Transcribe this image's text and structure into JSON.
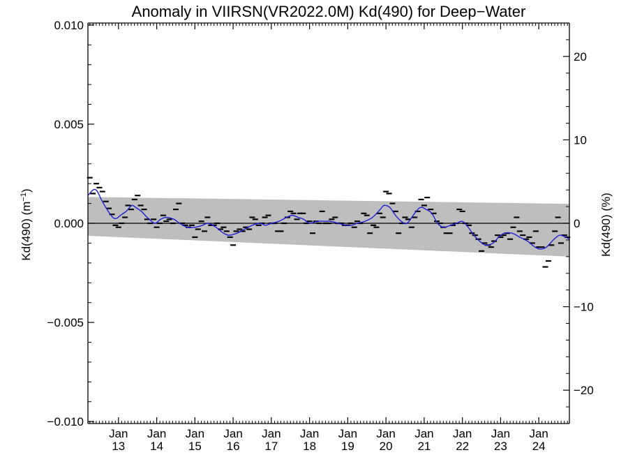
{
  "chart_data": {
    "type": "line",
    "title": "Anomaly in VIIRSN(VR2022.0M) Kd(490) for Deep−Water",
    "ylabel_left": "Kd(490) (m",
    "ylabel_left_sup": "−1",
    "ylabel_left_end": ")",
    "ylabel_right": "Kd(490) (%)",
    "xlim": [
      2012.2,
      2024.8
    ],
    "ylim_left": [
      -0.0101,
      0.0101
    ],
    "ylim_right": [
      -24,
      24
    ],
    "grid": false,
    "x_ticks": [
      {
        "x": 2013,
        "line1": "Jan",
        "line2": "13"
      },
      {
        "x": 2014,
        "line1": "Jan",
        "line2": "14"
      },
      {
        "x": 2015,
        "line1": "Jan",
        "line2": "15"
      },
      {
        "x": 2016,
        "line1": "Jan",
        "line2": "16"
      },
      {
        "x": 2017,
        "line1": "Jan",
        "line2": "17"
      },
      {
        "x": 2018,
        "line1": "Jan",
        "line2": "18"
      },
      {
        "x": 2019,
        "line1": "Jan",
        "line2": "19"
      },
      {
        "x": 2020,
        "line1": "Jan",
        "line2": "20"
      },
      {
        "x": 2021,
        "line1": "Jan",
        "line2": "21"
      },
      {
        "x": 2022,
        "line1": "Jan",
        "line2": "22"
      },
      {
        "x": 2023,
        "line1": "Jan",
        "line2": "23"
      },
      {
        "x": 2024,
        "line1": "Jan",
        "line2": "24"
      }
    ],
    "y_ticks_left": [
      {
        "v": 0.01,
        "label": "0.010"
      },
      {
        "v": 0.005,
        "label": "0.005"
      },
      {
        "v": 0.0,
        "label": "0.000"
      },
      {
        "v": -0.005,
        "label": "−0.005"
      },
      {
        "v": -0.01,
        "label": "−0.010"
      }
    ],
    "y_ticks_right": [
      {
        "v": 20,
        "label": "20"
      },
      {
        "v": 10,
        "label": "10"
      },
      {
        "v": 0,
        "label": "0"
      },
      {
        "v": -10,
        "label": "−10"
      },
      {
        "v": -20,
        "label": "−20"
      }
    ],
    "band": {
      "upper": [
        [
          2012.2,
          0.00133
        ],
        [
          2024.8,
          0.00098
        ]
      ],
      "lower": [
        [
          2012.2,
          -0.00063
        ],
        [
          2024.8,
          -0.00168
        ]
      ]
    },
    "monthly_anomaly": [
      [
        2012.25,
        0.0023
      ],
      [
        2012.33,
        0.0015
      ],
      [
        2012.42,
        0.002
      ],
      [
        2012.5,
        0.0018
      ],
      [
        2012.58,
        0.0016
      ],
      [
        2012.67,
        0.0011
      ],
      [
        2012.75,
        0.00075
      ],
      [
        2012.83,
        0.00045
      ],
      [
        2012.92,
        -0.0001
      ],
      [
        2013.0,
        -0.0002
      ],
      [
        2013.08,
        0.0
      ],
      [
        2013.17,
        0.0003
      ],
      [
        2013.25,
        0.0009
      ],
      [
        2013.33,
        0.0007
      ],
      [
        2013.42,
        0.0012
      ],
      [
        2013.5,
        0.0014
      ],
      [
        2013.58,
        0.0009
      ],
      [
        2013.67,
        0.0007
      ],
      [
        2013.75,
        0.0002
      ],
      [
        2013.83,
        0.0
      ],
      [
        2013.92,
        0.0002
      ],
      [
        2014.0,
        -0.0002
      ],
      [
        2014.08,
        0.0
      ],
      [
        2014.17,
        0.0004
      ],
      [
        2014.25,
        0.0001
      ],
      [
        2014.33,
        0.0002
      ],
      [
        2014.42,
        0.0
      ],
      [
        2014.5,
        0.0007
      ],
      [
        2014.58,
        0.001
      ],
      [
        2014.67,
        0.0
      ],
      [
        2014.75,
        -0.0001
      ],
      [
        2014.83,
        -0.0002
      ],
      [
        2014.92,
        -0.0001
      ],
      [
        2015.0,
        -0.0007
      ],
      [
        2015.08,
        -0.0003
      ],
      [
        2015.17,
        0.0001
      ],
      [
        2015.25,
        -0.0004
      ],
      [
        2015.33,
        0.0003
      ],
      [
        2015.42,
        -0.0001
      ],
      [
        2015.5,
        -0.0001
      ],
      [
        2015.58,
        0.0
      ],
      [
        2015.67,
        -0.0003
      ],
      [
        2015.75,
        -0.0002
      ],
      [
        2015.83,
        -0.0004
      ],
      [
        2015.92,
        -0.0007
      ],
      [
        2016.0,
        -0.0011
      ],
      [
        2016.08,
        -0.0004
      ],
      [
        2016.17,
        -0.0003
      ],
      [
        2016.25,
        -0.0004
      ],
      [
        2016.33,
        -0.0002
      ],
      [
        2016.42,
        -0.0003
      ],
      [
        2016.5,
        0.0003
      ],
      [
        2016.58,
        0.0002
      ],
      [
        2016.67,
        -0.0001
      ],
      [
        2016.75,
        0.0
      ],
      [
        2016.83,
        0.0003
      ],
      [
        2016.92,
        0.0004
      ],
      [
        2017.0,
        0.0
      ],
      [
        2017.08,
        0.0
      ],
      [
        2017.17,
        -0.0004
      ],
      [
        2017.25,
        -0.0004
      ],
      [
        2017.33,
        0.0
      ],
      [
        2017.42,
        0.0003
      ],
      [
        2017.5,
        0.0006
      ],
      [
        2017.58,
        0.0005
      ],
      [
        2017.67,
        0.0002
      ],
      [
        2017.75,
        0.0005
      ],
      [
        2017.83,
        0.0005
      ],
      [
        2017.92,
        0.0
      ],
      [
        2018.0,
        0.0001
      ],
      [
        2018.08,
        -0.0005
      ],
      [
        2018.17,
        0.0001
      ],
      [
        2018.25,
        0.0
      ],
      [
        2018.33,
        0.0006
      ],
      [
        2018.42,
        0.0
      ],
      [
        2018.5,
        0.0
      ],
      [
        2018.58,
        0.0002
      ],
      [
        2018.67,
        0.0003
      ],
      [
        2018.75,
        0.0
      ],
      [
        2018.83,
        0.0
      ],
      [
        2018.92,
        -0.0001
      ],
      [
        2019.0,
        -0.0001
      ],
      [
        2019.08,
        0.0
      ],
      [
        2019.17,
        -0.0002
      ],
      [
        2019.25,
        0.0001
      ],
      [
        2019.33,
        0.0
      ],
      [
        2019.42,
        0.0005
      ],
      [
        2019.5,
        0.0004
      ],
      [
        2019.58,
        -0.0005
      ],
      [
        2019.67,
        -0.0001
      ],
      [
        2019.75,
        -0.0002
      ],
      [
        2019.83,
        0.0005
      ],
      [
        2019.92,
        0.0003
      ],
      [
        2020.0,
        0.0016
      ],
      [
        2020.08,
        0.0015
      ],
      [
        2020.17,
        0.001
      ],
      [
        2020.25,
        0.0006
      ],
      [
        2020.33,
        -0.0005
      ],
      [
        2020.42,
        0.0
      ],
      [
        2020.5,
        0.0003
      ],
      [
        2020.58,
        0.0002
      ],
      [
        2020.67,
        -0.0002
      ],
      [
        2020.75,
        0.0003
      ],
      [
        2020.83,
        0.0006
      ],
      [
        2020.92,
        0.0012
      ],
      [
        2021.0,
        0.0009
      ],
      [
        2021.08,
        0.0013
      ],
      [
        2021.17,
        0.0007
      ],
      [
        2021.25,
        0.0005
      ],
      [
        2021.33,
        0.0001
      ],
      [
        2021.42,
        0.0
      ],
      [
        2021.5,
        -0.0002
      ],
      [
        2021.58,
        -0.0005
      ],
      [
        2021.67,
        -0.0005
      ],
      [
        2021.75,
        -0.0001
      ],
      [
        2021.83,
        0.0
      ],
      [
        2021.92,
        0.0007
      ],
      [
        2022.0,
        0.0006
      ],
      [
        2022.08,
        0.0
      ],
      [
        2022.17,
        -0.0001
      ],
      [
        2022.25,
        -0.0005
      ],
      [
        2022.33,
        -0.0006
      ],
      [
        2022.42,
        -0.0008
      ],
      [
        2022.5,
        -0.0014
      ],
      [
        2022.58,
        -0.001
      ],
      [
        2022.67,
        -0.0011
      ],
      [
        2022.75,
        -0.0012
      ],
      [
        2022.83,
        -0.0009
      ],
      [
        2022.92,
        -0.0006
      ],
      [
        2023.0,
        -0.0007
      ],
      [
        2023.08,
        -0.0006
      ],
      [
        2023.17,
        -0.0005
      ],
      [
        2023.25,
        -0.0008
      ],
      [
        2023.33,
        -0.0002
      ],
      [
        2023.42,
        0.0003
      ],
      [
        2023.5,
        -0.0004
      ],
      [
        2023.58,
        -0.0006
      ],
      [
        2023.67,
        -0.0008
      ],
      [
        2023.75,
        -0.0007
      ],
      [
        2023.83,
        -0.001
      ],
      [
        2023.92,
        -0.0004
      ],
      [
        2024.0,
        -0.0012
      ],
      [
        2024.08,
        -0.0012
      ],
      [
        2024.17,
        -0.0022
      ],
      [
        2024.25,
        -0.0019
      ],
      [
        2024.33,
        -0.0011
      ],
      [
        2024.42,
        -0.0004
      ],
      [
        2024.5,
        0.0003
      ],
      [
        2024.58,
        -0.001
      ],
      [
        2024.67,
        -0.0006
      ],
      [
        2024.75,
        -0.0007
      ]
    ],
    "smoothed_line": [
      [
        2012.2,
        0.0014
      ],
      [
        2012.35,
        0.0017
      ],
      [
        2012.45,
        0.0016
      ],
      [
        2012.55,
        0.0012
      ],
      [
        2012.7,
        0.0007
      ],
      [
        2012.85,
        0.0003
      ],
      [
        2012.95,
        0.00025
      ],
      [
        2013.05,
        0.0004
      ],
      [
        2013.2,
        0.0006
      ],
      [
        2013.35,
        0.0009
      ],
      [
        2013.45,
        0.0008
      ],
      [
        2013.6,
        0.0006
      ],
      [
        2013.75,
        0.0003
      ],
      [
        2013.95,
        0.0
      ],
      [
        2014.1,
        0.0002
      ],
      [
        2014.25,
        0.0003
      ],
      [
        2014.45,
        0.0002
      ],
      [
        2014.6,
        0.0
      ],
      [
        2014.8,
        -0.0002
      ],
      [
        2015.0,
        -0.0002
      ],
      [
        2015.2,
        -0.0001
      ],
      [
        2015.35,
        0.0
      ],
      [
        2015.55,
        -0.0002
      ],
      [
        2015.75,
        -0.0005
      ],
      [
        2015.9,
        -0.0006
      ],
      [
        2016.1,
        -0.0005
      ],
      [
        2016.3,
        -0.0003
      ],
      [
        2016.5,
        -0.0001
      ],
      [
        2016.7,
        0.0
      ],
      [
        2016.85,
        -0.0001
      ],
      [
        2017.0,
        0.0
      ],
      [
        2017.2,
        0.0001
      ],
      [
        2017.4,
        0.0003
      ],
      [
        2017.55,
        0.0004
      ],
      [
        2017.7,
        0.0003
      ],
      [
        2017.85,
        0.0002
      ],
      [
        2018.0,
        0.0
      ],
      [
        2018.2,
        0.0001
      ],
      [
        2018.4,
        0.0001
      ],
      [
        2018.55,
        0.0001
      ],
      [
        2018.75,
        0.0
      ],
      [
        2018.95,
        -0.0001
      ],
      [
        2019.1,
        -0.0001
      ],
      [
        2019.25,
        0.0
      ],
      [
        2019.45,
        0.0001
      ],
      [
        2019.65,
        0.0003
      ],
      [
        2019.85,
        0.0007
      ],
      [
        2019.95,
        0.0009
      ],
      [
        2020.1,
        0.0008
      ],
      [
        2020.25,
        0.0004
      ],
      [
        2020.4,
        0.0001
      ],
      [
        2020.55,
        0.0
      ],
      [
        2020.75,
        0.0005
      ],
      [
        2020.9,
        0.0008
      ],
      [
        2021.05,
        0.0007
      ],
      [
        2021.2,
        0.0005
      ],
      [
        2021.35,
        0.0
      ],
      [
        2021.5,
        -0.0002
      ],
      [
        2021.7,
        -0.0001
      ],
      [
        2021.85,
        0.0
      ],
      [
        2022.0,
        0.0001
      ],
      [
        2022.15,
        -0.0002
      ],
      [
        2022.3,
        -0.0006
      ],
      [
        2022.45,
        -0.0009
      ],
      [
        2022.6,
        -0.0011
      ],
      [
        2022.8,
        -0.001
      ],
      [
        2022.95,
        -0.0007
      ],
      [
        2023.1,
        -0.0005
      ],
      [
        2023.3,
        -0.0005
      ],
      [
        2023.5,
        -0.0007
      ],
      [
        2023.7,
        -0.0009
      ],
      [
        2023.9,
        -0.0012
      ],
      [
        2024.05,
        -0.0013
      ],
      [
        2024.2,
        -0.0012
      ],
      [
        2024.4,
        -0.0008
      ],
      [
        2024.55,
        -0.0006
      ],
      [
        2024.7,
        -0.0007
      ],
      [
        2024.8,
        -0.0008
      ]
    ],
    "colors": {
      "band": "#bebebe",
      "smoothed_line": "#1f1fd6",
      "points": "#000000",
      "zero_line": "#000000",
      "axes": "#000000"
    }
  }
}
